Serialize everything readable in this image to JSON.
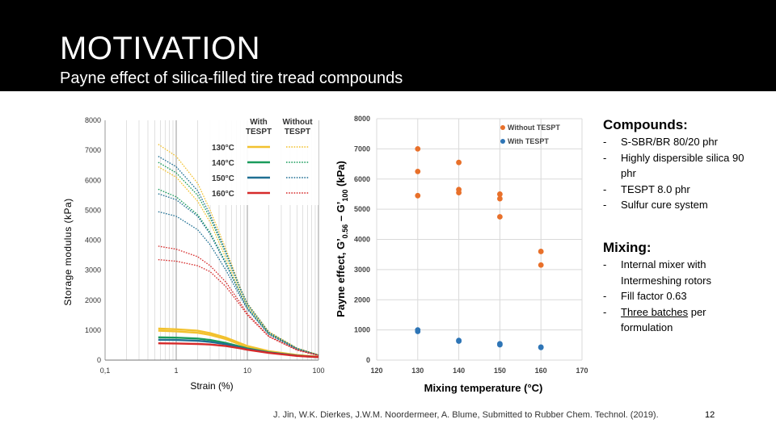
{
  "slide": {
    "title": "MOTIVATION",
    "subtitle": "Payne effect of silica-filled tire tread compounds",
    "citation": "J. Jin, W.K. Dierkes, J.W.M. Noordermeer, A. Blume, Submitted to Rubber Chem. Technol. (2019).",
    "page_number": "12"
  },
  "compounds": {
    "heading": "Compounds:",
    "items": [
      {
        "dash": "-",
        "text": "S-SBR/BR 80/20 phr"
      },
      {
        "dash": "-",
        "text": "Highly dispersible silica 90 phr"
      },
      {
        "dash": "-",
        "text": "TESPT 8.0 phr"
      },
      {
        "dash": "-",
        "text": "Sulfur cure system"
      }
    ]
  },
  "mixing": {
    "heading": "Mixing:",
    "items": [
      {
        "dash": "-",
        "text": "Internal mixer with Intermeshing rotors"
      },
      {
        "dash": "-",
        "text": "Fill factor 0.63"
      },
      {
        "dash": "-",
        "text_underlined": "Three batches",
        "text_rest": " per formulation"
      }
    ]
  },
  "chart_data": [
    {
      "type": "line",
      "xlabel": "Strain (%)",
      "ylabel": "Storage modulus (kPa)",
      "x_scale": "log",
      "xlim": [
        0.1,
        100
      ],
      "ylim": [
        0,
        8000
      ],
      "x_ticks": [
        "0,1",
        "1",
        "10",
        "100"
      ],
      "y_ticks": [
        "0",
        "1000",
        "2000",
        "3000",
        "4000",
        "5000",
        "6000",
        "7000",
        "8000"
      ],
      "legend": {
        "placement": "top-right",
        "col_headers": [
          "With TESPT",
          "Without TESPT"
        ],
        "rows": [
          {
            "label": "130°C",
            "color": "#f2c12e"
          },
          {
            "label": "140°C",
            "color": "#1a9b5c"
          },
          {
            "label": "150°C",
            "color": "#1f6f93"
          },
          {
            "label": "160°C",
            "color": "#d62a2a"
          }
        ]
      },
      "series": [
        {
          "temp": "130°C",
          "tespt": "with",
          "color": "#f2c12e",
          "x": [
            0.56,
            1,
            2,
            3,
            5,
            8,
            10,
            20,
            50,
            100
          ],
          "y": [
            1050,
            1030,
            980,
            900,
            750,
            560,
            470,
            300,
            170,
            110
          ]
        },
        {
          "temp": "130°C",
          "tespt": "with",
          "color": "#f2c12e",
          "x": [
            0.56,
            1,
            2,
            3,
            5,
            8,
            10,
            20,
            50,
            100
          ],
          "y": [
            980,
            960,
            910,
            840,
            700,
            520,
            440,
            280,
            160,
            100
          ]
        },
        {
          "temp": "140°C",
          "tespt": "with",
          "color": "#1a9b5c",
          "x": [
            0.56,
            1,
            2,
            3,
            5,
            8,
            10,
            20,
            50,
            100
          ],
          "y": [
            760,
            750,
            720,
            670,
            570,
            450,
            390,
            260,
            150,
            100
          ]
        },
        {
          "temp": "150°C",
          "tespt": "with",
          "color": "#1f6f93",
          "x": [
            0.56,
            1,
            2,
            3,
            5,
            8,
            10,
            20,
            50,
            100
          ],
          "y": [
            680,
            670,
            645,
            610,
            530,
            420,
            370,
            250,
            145,
            100
          ]
        },
        {
          "temp": "160°C",
          "tespt": "with",
          "color": "#d62a2a",
          "x": [
            0.56,
            1,
            2,
            3,
            5,
            8,
            10,
            20,
            50,
            100
          ],
          "y": [
            560,
            555,
            540,
            520,
            470,
            390,
            345,
            240,
            140,
            100
          ]
        },
        {
          "temp": "130°C",
          "tespt": "without",
          "color": "#f2c12e",
          "x": [
            0.56,
            1,
            2,
            3,
            5,
            8,
            10,
            20,
            50,
            100
          ],
          "y": [
            7200,
            6800,
            5900,
            5000,
            3700,
            2400,
            1900,
            950,
            400,
            180
          ]
        },
        {
          "temp": "130°C",
          "tespt": "without",
          "color": "#f2c12e",
          "x": [
            0.56,
            1,
            2,
            3,
            5,
            8,
            10,
            20,
            50,
            100
          ],
          "y": [
            6450,
            6100,
            5300,
            4600,
            3400,
            2250,
            1800,
            900,
            380,
            170
          ]
        },
        {
          "temp": "140°C",
          "tespt": "without",
          "color": "#1a9b5c",
          "x": [
            0.56,
            1,
            2,
            3,
            5,
            8,
            10,
            20,
            50,
            100
          ],
          "y": [
            6600,
            6250,
            5500,
            4750,
            3550,
            2350,
            1850,
            920,
            390,
            170
          ]
        },
        {
          "temp": "140°C",
          "tespt": "without",
          "color": "#1a9b5c",
          "x": [
            0.56,
            1,
            2,
            3,
            5,
            8,
            10,
            20,
            50,
            100
          ],
          "y": [
            5700,
            5450,
            4850,
            4250,
            3250,
            2200,
            1750,
            880,
            370,
            165
          ]
        },
        {
          "temp": "150°C",
          "tespt": "without",
          "color": "#1f6f93",
          "x": [
            0.56,
            1,
            2,
            3,
            5,
            8,
            10,
            20,
            50,
            100
          ],
          "y": [
            6800,
            6450,
            5650,
            4850,
            3600,
            2380,
            1880,
            930,
            390,
            170
          ]
        },
        {
          "temp": "150°C",
          "tespt": "without",
          "color": "#1f6f93",
          "x": [
            0.56,
            1,
            2,
            3,
            5,
            8,
            10,
            20,
            50,
            100
          ],
          "y": [
            4950,
            4800,
            4350,
            3850,
            3000,
            2100,
            1700,
            860,
            360,
            160
          ]
        },
        {
          "temp": "150°C",
          "tespt": "without",
          "color": "#1f6f93",
          "x": [
            0.56,
            1,
            2,
            3,
            5,
            8,
            10,
            20,
            50,
            100
          ],
          "y": [
            5550,
            5350,
            4800,
            4200,
            3200,
            2180,
            1730,
            870,
            365,
            160
          ]
        },
        {
          "temp": "160°C",
          "tespt": "without",
          "color": "#d62a2a",
          "x": [
            0.56,
            1,
            2,
            3,
            5,
            8,
            10,
            20,
            50,
            100
          ],
          "y": [
            3800,
            3700,
            3450,
            3150,
            2600,
            1900,
            1550,
            800,
            340,
            155
          ]
        },
        {
          "temp": "160°C",
          "tespt": "without",
          "color": "#d62a2a",
          "x": [
            0.56,
            1,
            2,
            3,
            5,
            8,
            10,
            20,
            50,
            100
          ],
          "y": [
            3350,
            3300,
            3150,
            2950,
            2450,
            1820,
            1500,
            780,
            330,
            150
          ]
        }
      ]
    },
    {
      "type": "scatter",
      "xlabel": "Mixing temperature (°C)",
      "ylabel": "Payne effect, G' 0.56 – G' 100 (kPa)",
      "ylabel_parts": {
        "pre": "Payne effect, G’",
        "sub1": "0.56",
        "mid": " – G’",
        "sub2": "100",
        "post": " (kPa)"
      },
      "xlim": [
        120,
        170
      ],
      "ylim": [
        0,
        8000
      ],
      "x_ticks": [
        "120",
        "130",
        "140",
        "150",
        "160",
        "170"
      ],
      "y_ticks": [
        "0",
        "1000",
        "2000",
        "3000",
        "4000",
        "5000",
        "6000",
        "7000",
        "8000"
      ],
      "grid": true,
      "legend": {
        "placement": "top-right"
      },
      "series": [
        {
          "name": "Without TESPT",
          "color": "#e8702a",
          "x": [
            130,
            130,
            130,
            140,
            140,
            140,
            150,
            150,
            150,
            160,
            160
          ],
          "y": [
            7000,
            6250,
            5450,
            6550,
            5650,
            5550,
            5500,
            5350,
            4750,
            3600,
            3150
          ]
        },
        {
          "name": "With TESPT",
          "color": "#2e75b6",
          "x": [
            130,
            130,
            140,
            140,
            150,
            150,
            160,
            160
          ],
          "y": [
            1000,
            950,
            650,
            630,
            540,
            510,
            430,
            420
          ]
        }
      ]
    }
  ]
}
